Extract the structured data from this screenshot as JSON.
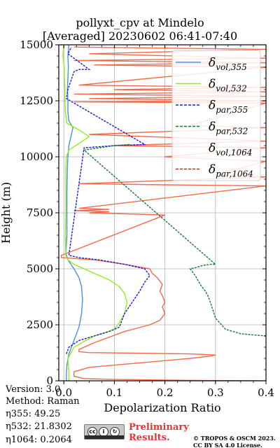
{
  "header": {
    "title_line1": "pollyxt_cpv at Mindelo",
    "title_line2": "[Averaged] 20230602 06:41-07:40"
  },
  "footer": {
    "version": "Version: 3.0",
    "method": "Method: Raman",
    "eta355": "η355:  49.25",
    "eta532": "η532: 21.8302",
    "eta1064": "η1064: 0.2064",
    "preliminary_line1": "Preliminary",
    "preliminary_line2": "Results.",
    "copyright_line1": "© TROPOS & OSCM 2023.",
    "copyright_line2": "CC BY SA 4.0 License.",
    "license_icon": "cc-by-sa-icon"
  },
  "chart_data": {
    "type": "line",
    "xlabel": "Depolarization Ratio",
    "ylabel": "Height (m)",
    "xlim": [
      -0.01,
      0.4
    ],
    "ylim": [
      0,
      15000
    ],
    "xticks": [
      0.0,
      0.1,
      0.2,
      0.3,
      0.4
    ],
    "xtick_labels": [
      "0.0",
      "0.1",
      "0.2",
      "0.3",
      "0.4"
    ],
    "yticks": [
      0,
      2500,
      5000,
      7500,
      10000,
      12500,
      15000
    ],
    "ytick_labels": [
      "0",
      "2500",
      "5000",
      "7500",
      "10000",
      "12500",
      "15000"
    ],
    "grid": true,
    "legend_position": "top-right",
    "series": [
      {
        "name": "δvol,355",
        "label_base": "δ",
        "label_sub": "vol,355",
        "color": "#4a90e2",
        "dash": "solid",
        "points": [
          [
            0.005,
            0
          ],
          [
            0.005,
            300
          ],
          [
            0.006,
            700
          ],
          [
            0.01,
            1200
          ],
          [
            0.02,
            1800
          ],
          [
            0.03,
            2400
          ],
          [
            0.035,
            3000
          ],
          [
            0.037,
            3600
          ],
          [
            0.035,
            4200
          ],
          [
            0.03,
            4600
          ],
          [
            0.02,
            5000
          ],
          [
            0.008,
            5400
          ],
          [
            0.004,
            5700
          ],
          [
            0.006,
            6500
          ],
          [
            0.006,
            7500
          ],
          [
            0.006,
            8500
          ],
          [
            0.007,
            9500
          ],
          [
            0.008,
            10000
          ],
          [
            0.01,
            10500
          ],
          [
            0.015,
            11000
          ],
          [
            0.018,
            11300
          ],
          [
            0.01,
            11600
          ],
          [
            0.008,
            12000
          ],
          [
            0.008,
            12500
          ],
          [
            0.007,
            13000
          ],
          [
            0.008,
            13500
          ],
          [
            0.009,
            14000
          ],
          [
            0.008,
            14500
          ],
          [
            0.01,
            15000
          ]
        ]
      },
      {
        "name": "δvol,532",
        "label_base": "δ",
        "label_sub": "vol,532",
        "color": "#90ee1c",
        "dash": "solid",
        "points": [
          [
            0.01,
            0
          ],
          [
            0.01,
            400
          ],
          [
            0.008,
            1000
          ],
          [
            0.02,
            1500
          ],
          [
            0.06,
            2000
          ],
          [
            0.1,
            2300
          ],
          [
            0.11,
            2600
          ],
          [
            0.12,
            3000
          ],
          [
            0.125,
            3500
          ],
          [
            0.12,
            3900
          ],
          [
            0.11,
            4200
          ],
          [
            0.09,
            4500
          ],
          [
            0.06,
            4800
          ],
          [
            0.04,
            5000
          ],
          [
            0.02,
            5200
          ],
          [
            0.008,
            5400
          ],
          [
            0.004,
            5600
          ],
          [
            0.003,
            6500
          ],
          [
            0.004,
            7500
          ],
          [
            0.004,
            8500
          ],
          [
            0.004,
            9500
          ],
          [
            0.005,
            10000
          ],
          [
            0.01,
            10300
          ],
          [
            0.03,
            10600
          ],
          [
            0.05,
            10900
          ],
          [
            0.03,
            11200
          ],
          [
            0.006,
            11500
          ],
          [
            0.003,
            12000
          ],
          [
            0.002,
            12500
          ],
          [
            0.002,
            13000
          ],
          [
            0.001,
            13500
          ],
          [
            0.001,
            14000
          ],
          [
            -0.002,
            14500
          ],
          [
            0.0,
            15000
          ]
        ]
      },
      {
        "name": "δpar,355",
        "label_base": "δ",
        "label_sub": "par,355",
        "color": "#1a1ae0",
        "dash": "dashed",
        "points": [
          [
            0.005,
            1200
          ],
          [
            0.01,
            1500
          ],
          [
            0.03,
            1800
          ],
          [
            0.06,
            2000
          ],
          [
            0.09,
            2200
          ],
          [
            0.11,
            2400
          ],
          [
            0.115,
            2700
          ],
          [
            0.12,
            3000
          ],
          [
            0.135,
            3500
          ],
          [
            0.15,
            4000
          ],
          [
            0.16,
            4400
          ],
          [
            0.17,
            4700
          ],
          [
            0.16,
            5000
          ],
          [
            0.12,
            5200
          ],
          [
            0.07,
            5400
          ],
          [
            0.03,
            5500
          ],
          [
            0.01,
            5600
          ],
          [
            0.04,
            10400
          ],
          [
            0.1,
            10500
          ],
          [
            0.16,
            10550
          ],
          [
            0.005,
            12600
          ],
          [
            0.008,
            13000
          ],
          [
            0.02,
            13800
          ],
          [
            0.03,
            13900
          ],
          [
            0.05,
            13900
          ],
          [
            0.008,
            14600
          ],
          [
            0.015,
            14900
          ]
        ]
      },
      {
        "name": "δpar,532",
        "label_base": "δ",
        "label_sub": "par,532",
        "color": "#167a38",
        "dash": "dashed",
        "points": [
          [
            0.4,
            2000
          ],
          [
            0.35,
            2100
          ],
          [
            0.32,
            2300
          ],
          [
            0.3,
            2800
          ],
          [
            0.29,
            3500
          ],
          [
            0.285,
            3800
          ],
          [
            0.28,
            4000
          ],
          [
            0.27,
            4300
          ],
          [
            0.26,
            4700
          ],
          [
            0.25,
            5000
          ],
          [
            0.26,
            5050
          ],
          [
            0.275,
            5150
          ],
          [
            0.29,
            5200
          ],
          [
            0.3,
            5200
          ],
          [
            0.04,
            10300
          ],
          [
            0.07,
            10400
          ],
          [
            0.1,
            10500
          ],
          [
            0.13,
            10550
          ]
        ]
      },
      {
        "name": "δvol,1064",
        "label_base": "δ",
        "label_sub": "vol,1064",
        "color": "#ffffff",
        "dash": "dashed",
        "points": []
      },
      {
        "name": "δpar,1064",
        "label_base": "δ",
        "label_sub": "par,1064",
        "color": "#d62020",
        "dash": "dashed",
        "points": []
      }
    ],
    "profile_1064": {
      "color": "#f26a4a",
      "points": [
        [
          0.4,
          0
        ],
        [
          0.25,
          20
        ],
        [
          0.1,
          60
        ],
        [
          0.04,
          100
        ],
        [
          0.02,
          200
        ],
        [
          0.02,
          400
        ],
        [
          0.05,
          600
        ],
        [
          0.1,
          700
        ],
        [
          0.15,
          800
        ],
        [
          0.2,
          900
        ],
        [
          0.25,
          1000
        ],
        [
          0.29,
          1100
        ],
        [
          0.3,
          1150
        ],
        [
          0.25,
          1200
        ],
        [
          0.15,
          1230
        ],
        [
          0.05,
          1260
        ],
        [
          0.03,
          1300
        ],
        [
          0.03,
          1400
        ],
        [
          0.06,
          1700
        ],
        [
          0.12,
          2200
        ],
        [
          0.17,
          2500
        ],
        [
          0.19,
          2700
        ],
        [
          0.2,
          3000
        ],
        [
          0.195,
          3300
        ],
        [
          0.2,
          3500
        ],
        [
          0.195,
          3800
        ],
        [
          0.19,
          4000
        ],
        [
          0.195,
          4300
        ],
        [
          0.185,
          4600
        ],
        [
          0.175,
          4800
        ],
        [
          0.17,
          5000
        ],
        [
          0.12,
          5200
        ],
        [
          0.06,
          5400
        ],
        [
          -0.005,
          5500
        ],
        [
          -0.005,
          5600
        ],
        [
          0.2,
          7400
        ],
        [
          0.05,
          7500
        ],
        [
          0.09,
          7550
        ],
        [
          0.02,
          7600
        ],
        [
          0.09,
          7650
        ],
        [
          0.03,
          7700
        ],
        [
          0.4,
          8700
        ],
        [
          0.2,
          8750
        ],
        [
          0.03,
          8800
        ],
        [
          0.4,
          9100
        ],
        [
          0.3,
          9200
        ],
        [
          0.4,
          9800
        ],
        [
          0.2,
          10000
        ],
        [
          0.4,
          10400
        ],
        [
          0.1,
          10500
        ],
        [
          0.4,
          10700
        ],
        [
          0.05,
          11000
        ],
        [
          0.4,
          11300
        ],
        [
          0.25,
          11400
        ],
        [
          0.4,
          12400
        ],
        [
          0.02,
          12450
        ],
        [
          0.4,
          12500
        ],
        [
          0.05,
          12600
        ],
        [
          0.4,
          12700
        ],
        [
          0.02,
          12800
        ],
        [
          0.4,
          12900
        ],
        [
          0.1,
          13000
        ],
        [
          0.4,
          13100
        ],
        [
          0.03,
          13200
        ],
        [
          0.4,
          14000
        ],
        [
          0.06,
          14100
        ],
        [
          0.4,
          14200
        ],
        [
          0.02,
          14300
        ],
        [
          0.4,
          14400
        ],
        [
          0.05,
          14600
        ],
        [
          0.4,
          14800
        ],
        [
          0.02,
          14900
        ]
      ]
    }
  }
}
